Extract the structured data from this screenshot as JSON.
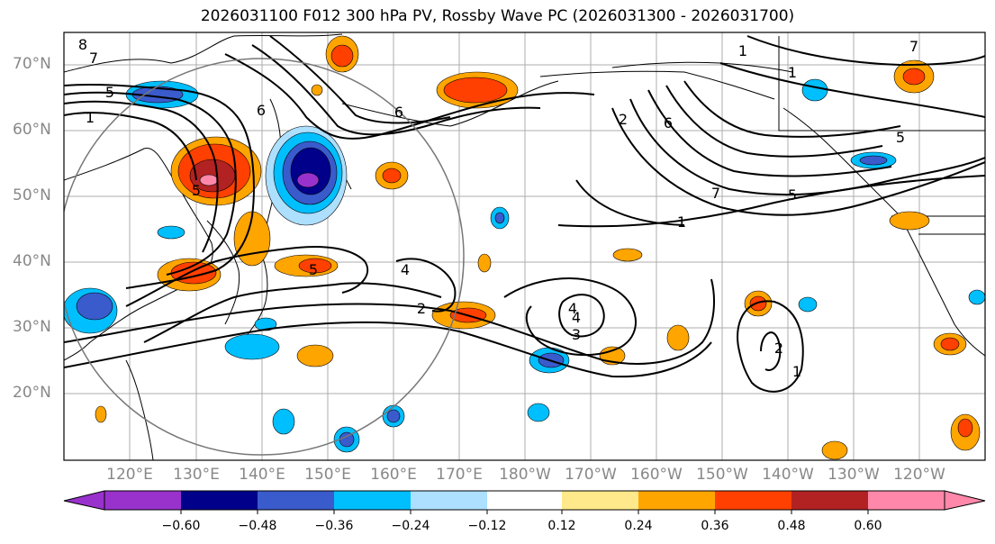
{
  "title": "2026031100 F012 300 hPa PV, Rossby Wave PC (2026031300 - 2026031700)",
  "lat_labels": [
    "70°N",
    "60°N",
    "50°N",
    "40°N",
    "30°N",
    "20°N"
  ],
  "lon_labels": [
    "120°E",
    "130°E",
    "140°E",
    "150°E",
    "160°E",
    "170°E",
    "180°W",
    "170°W",
    "160°W",
    "150°W",
    "140°W",
    "130°W",
    "120°W"
  ],
  "contour_labels": [
    "1",
    "5",
    "7",
    "8",
    "6",
    "5",
    "6",
    "4",
    "2",
    "7",
    "5",
    "1",
    "5",
    "6",
    "7",
    "1",
    "4",
    "2",
    "3",
    "4",
    "2",
    "1",
    "1",
    "5"
  ],
  "colorbar": {
    "ticks": [
      "−0.60",
      "−0.48",
      "−0.36",
      "−0.24",
      "−0.12",
      "0.12",
      "0.24",
      "0.36",
      "0.48",
      "0.60"
    ],
    "colors": [
      "#9932CC",
      "#00008B",
      "#3A5BCC",
      "#00BFFF",
      "#ADDFFF",
      "#FFFFFF",
      "#FFE98A",
      "#FFA500",
      "#FF4000",
      "#B22222",
      "#FF88AA"
    ]
  }
}
